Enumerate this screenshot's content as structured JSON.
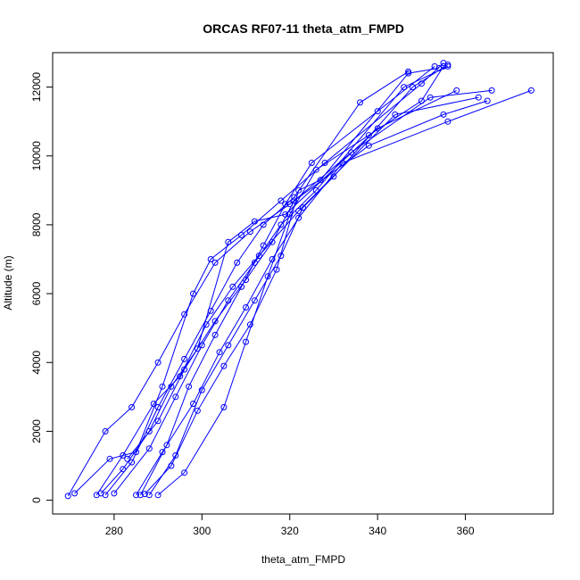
{
  "chart_data": {
    "type": "scatter",
    "title": "ORCAS RF07-11 theta_atm_FMPD",
    "xlabel": "theta_atm_FMPD",
    "ylabel": "Altitude (m)",
    "xlim": [
      266,
      380
    ],
    "ylim": [
      -400,
      13000
    ],
    "xticks": [
      280,
      300,
      320,
      340,
      360
    ],
    "yticks": [
      0,
      2000,
      4000,
      6000,
      8000,
      10000,
      12000
    ],
    "series_color": "#0000ff",
    "connected": true,
    "series": [
      {
        "points": [
          [
            290,
            150
          ],
          [
            296,
            800
          ],
          [
            305,
            2700
          ],
          [
            310,
            4600
          ],
          [
            315,
            6500
          ],
          [
            320,
            8300
          ],
          [
            326,
            9600
          ],
          [
            338,
            10600
          ],
          [
            350,
            11600
          ],
          [
            355,
            12600
          ]
        ]
      },
      {
        "points": [
          [
            286,
            150
          ],
          [
            292,
            1600
          ],
          [
            297,
            3300
          ],
          [
            303,
            4800
          ],
          [
            309,
            6200
          ],
          [
            314,
            7400
          ],
          [
            319,
            8600
          ],
          [
            325,
            9800
          ],
          [
            340,
            11300
          ],
          [
            353,
            12600
          ]
        ]
      },
      {
        "points": [
          [
            278,
            150
          ],
          [
            284,
            1100
          ],
          [
            290,
            2700
          ],
          [
            296,
            4100
          ],
          [
            302,
            5500
          ],
          [
            308,
            6900
          ],
          [
            314,
            8000
          ],
          [
            321,
            8800
          ],
          [
            336,
            11550
          ],
          [
            347,
            12450
          ]
        ]
      },
      {
        "points": [
          [
            269.5,
            120
          ],
          [
            278,
            2000
          ],
          [
            284,
            2700
          ],
          [
            290,
            4000
          ],
          [
            296,
            5400
          ],
          [
            303,
            6900
          ],
          [
            311,
            7800
          ],
          [
            320,
            8600
          ],
          [
            338,
            10300
          ],
          [
            355,
            11200
          ],
          [
            365,
            11600
          ]
        ]
      },
      {
        "points": [
          [
            276,
            150
          ],
          [
            282,
            1300
          ],
          [
            289,
            2800
          ],
          [
            295,
            3600
          ],
          [
            301,
            5100
          ],
          [
            307,
            6200
          ],
          [
            313,
            7100
          ],
          [
            322,
            8400
          ],
          [
            344,
            11200
          ],
          [
            363,
            11700
          ]
        ]
      },
      {
        "points": [
          [
            285,
            150
          ],
          [
            291,
            1400
          ],
          [
            298,
            2800
          ],
          [
            304,
            4300
          ],
          [
            310,
            5600
          ],
          [
            316,
            7000
          ],
          [
            322,
            8200
          ],
          [
            332,
            9800
          ],
          [
            356,
            11000
          ],
          [
            375,
            11900
          ]
        ]
      },
      {
        "points": [
          [
            280,
            200
          ],
          [
            288,
            1500
          ],
          [
            294,
            3000
          ],
          [
            300,
            4500
          ],
          [
            306,
            5800
          ],
          [
            312,
            6900
          ],
          [
            318,
            8000
          ],
          [
            326,
            9000
          ],
          [
            346,
            12000
          ],
          [
            356,
            12600
          ]
        ]
      },
      {
        "points": [
          [
            271,
            200
          ],
          [
            279,
            1200
          ],
          [
            285,
            1400
          ],
          [
            291,
            3300
          ],
          [
            298,
            6000
          ],
          [
            302,
            7000
          ],
          [
            309,
            7700
          ],
          [
            318,
            8700
          ],
          [
            328,
            9800
          ],
          [
            350,
            12100
          ],
          [
            355,
            12700
          ]
        ]
      },
      {
        "points": [
          [
            288,
            150
          ],
          [
            294,
            1300
          ],
          [
            300,
            3200
          ],
          [
            306,
            4500
          ],
          [
            312,
            5800
          ],
          [
            318,
            7100
          ],
          [
            323,
            8500
          ],
          [
            330,
            9400
          ],
          [
            348,
            12000
          ],
          [
            356,
            12650
          ]
        ]
      },
      {
        "points": [
          [
            283,
            1200
          ],
          [
            290,
            2300
          ],
          [
            296,
            3800
          ],
          [
            303,
            5200
          ],
          [
            310,
            6400
          ],
          [
            316,
            7500
          ],
          [
            321,
            8700
          ],
          [
            334,
            10100
          ],
          [
            352,
            11700
          ],
          [
            366,
            11900
          ]
        ]
      },
      {
        "points": [
          [
            287,
            180
          ],
          [
            293,
            1000
          ],
          [
            299,
            2600
          ],
          [
            305,
            3900
          ],
          [
            311,
            5100
          ],
          [
            317,
            6700
          ],
          [
            322,
            9000
          ],
          [
            327,
            9300
          ],
          [
            347,
            12400
          ],
          [
            354,
            12550
          ]
        ]
      },
      {
        "points": [
          [
            277,
            200
          ],
          [
            282,
            900
          ],
          [
            288,
            2000
          ],
          [
            293,
            3300
          ],
          [
            299,
            4400
          ],
          [
            306,
            7500
          ],
          [
            312,
            8100
          ],
          [
            319,
            8300
          ],
          [
            340,
            10800
          ],
          [
            358,
            11900
          ]
        ]
      }
    ]
  }
}
